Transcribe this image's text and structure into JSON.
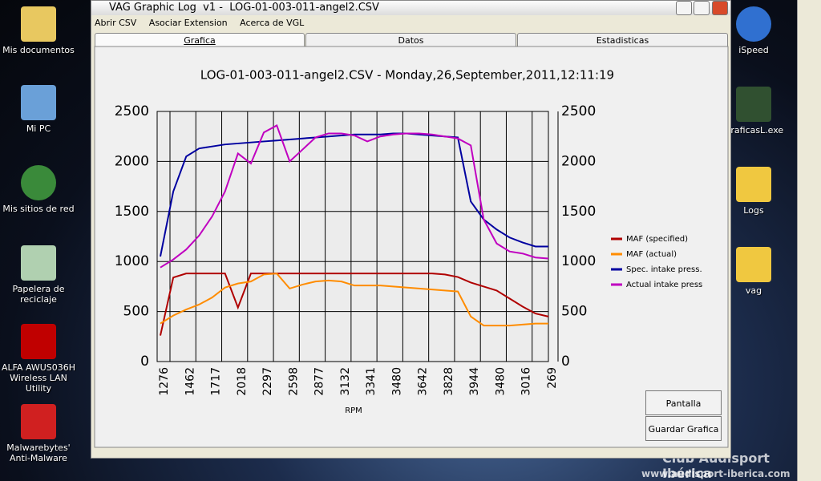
{
  "desktop_icons": {
    "left": [
      "Mis documentos",
      "Mi PC",
      "Mis sitios de red",
      "Papelera de reciclaje",
      "ALFA AWUS036H Wireless LAN Utility",
      "Malwarebytes' Anti-Malware"
    ],
    "right": [
      "iSpeed",
      "GraficasL.exe",
      "Logs",
      "vag"
    ]
  },
  "window": {
    "title": "VAG Graphic Log  v1 -  LOG-01-003-011-angel2.CSV",
    "menu": [
      "Abrir CSV",
      "Asociar Extension",
      "Acerca de VGL"
    ],
    "tabs": [
      "Grafica",
      "Datos",
      "Estadisticas"
    ]
  },
  "chart_data": {
    "type": "line",
    "title": "LOG-01-003-011-angel2.CSV - Monday,26,September,2011,12:11:19",
    "x_label": "RPM",
    "categories": [
      "1276",
      null,
      "1462",
      null,
      "1717",
      null,
      "2018",
      null,
      "2297",
      null,
      "2598",
      null,
      "2877",
      null,
      "3132",
      null,
      "3341",
      null,
      "3480",
      null,
      "3642",
      null,
      "3828",
      null,
      "3944",
      null,
      "3480",
      null,
      "3016",
      null,
      "269"
    ],
    "series": [
      {
        "name": "MAF (specified)",
        "color": "#b00000",
        "values": [
          260,
          840,
          880,
          880,
          880,
          880,
          540,
          880,
          880,
          880,
          880,
          880,
          880,
          880,
          880,
          880,
          880,
          880,
          880,
          880,
          880,
          880,
          870,
          845,
          790,
          750,
          710,
          630,
          550,
          480,
          450
        ]
      },
      {
        "name": "MAF (actual)",
        "color": "#ff8c00",
        "values": [
          380,
          460,
          520,
          570,
          640,
          740,
          780,
          800,
          870,
          880,
          730,
          770,
          800,
          810,
          800,
          760,
          760,
          760,
          750,
          740,
          730,
          720,
          710,
          700,
          450,
          360,
          360,
          360,
          370,
          380,
          380
        ]
      },
      {
        "name": "Spec. intake press.",
        "color": "#0000a0",
        "values": [
          1050,
          1700,
          2050,
          2130,
          2150,
          2170,
          2180,
          2190,
          2200,
          2210,
          2220,
          2230,
          2240,
          2250,
          2260,
          2270,
          2270,
          2270,
          2280,
          2280,
          2270,
          2260,
          2250,
          2240,
          1600,
          1420,
          1320,
          1240,
          1190,
          1150,
          1150
        ]
      },
      {
        "name": "Actual intake press",
        "color": "#c000c0",
        "values": [
          940,
          1020,
          1120,
          1260,
          1450,
          1700,
          2080,
          1980,
          2290,
          2360,
          2000,
          2120,
          2240,
          2280,
          2280,
          2260,
          2200,
          2250,
          2270,
          2280,
          2280,
          2270,
          2250,
          2230,
          2160,
          1420,
          1180,
          1100,
          1080,
          1040,
          1030
        ]
      }
    ],
    "ylim": [
      0,
      2500
    ],
    "yticks": [
      0,
      500,
      1000,
      1500,
      2000,
      2500
    ],
    "y2lim": [
      0,
      2500
    ],
    "y2ticks": [
      0,
      500,
      1000,
      1500,
      2000,
      2500
    ],
    "grid": true,
    "legend": "right"
  },
  "buttons": [
    "Pantalla Completa",
    "Guardar Grafica"
  ],
  "watermark": {
    "brand": "Club Audisport Ibérica",
    "url": "www.audisport-iberica.com"
  }
}
